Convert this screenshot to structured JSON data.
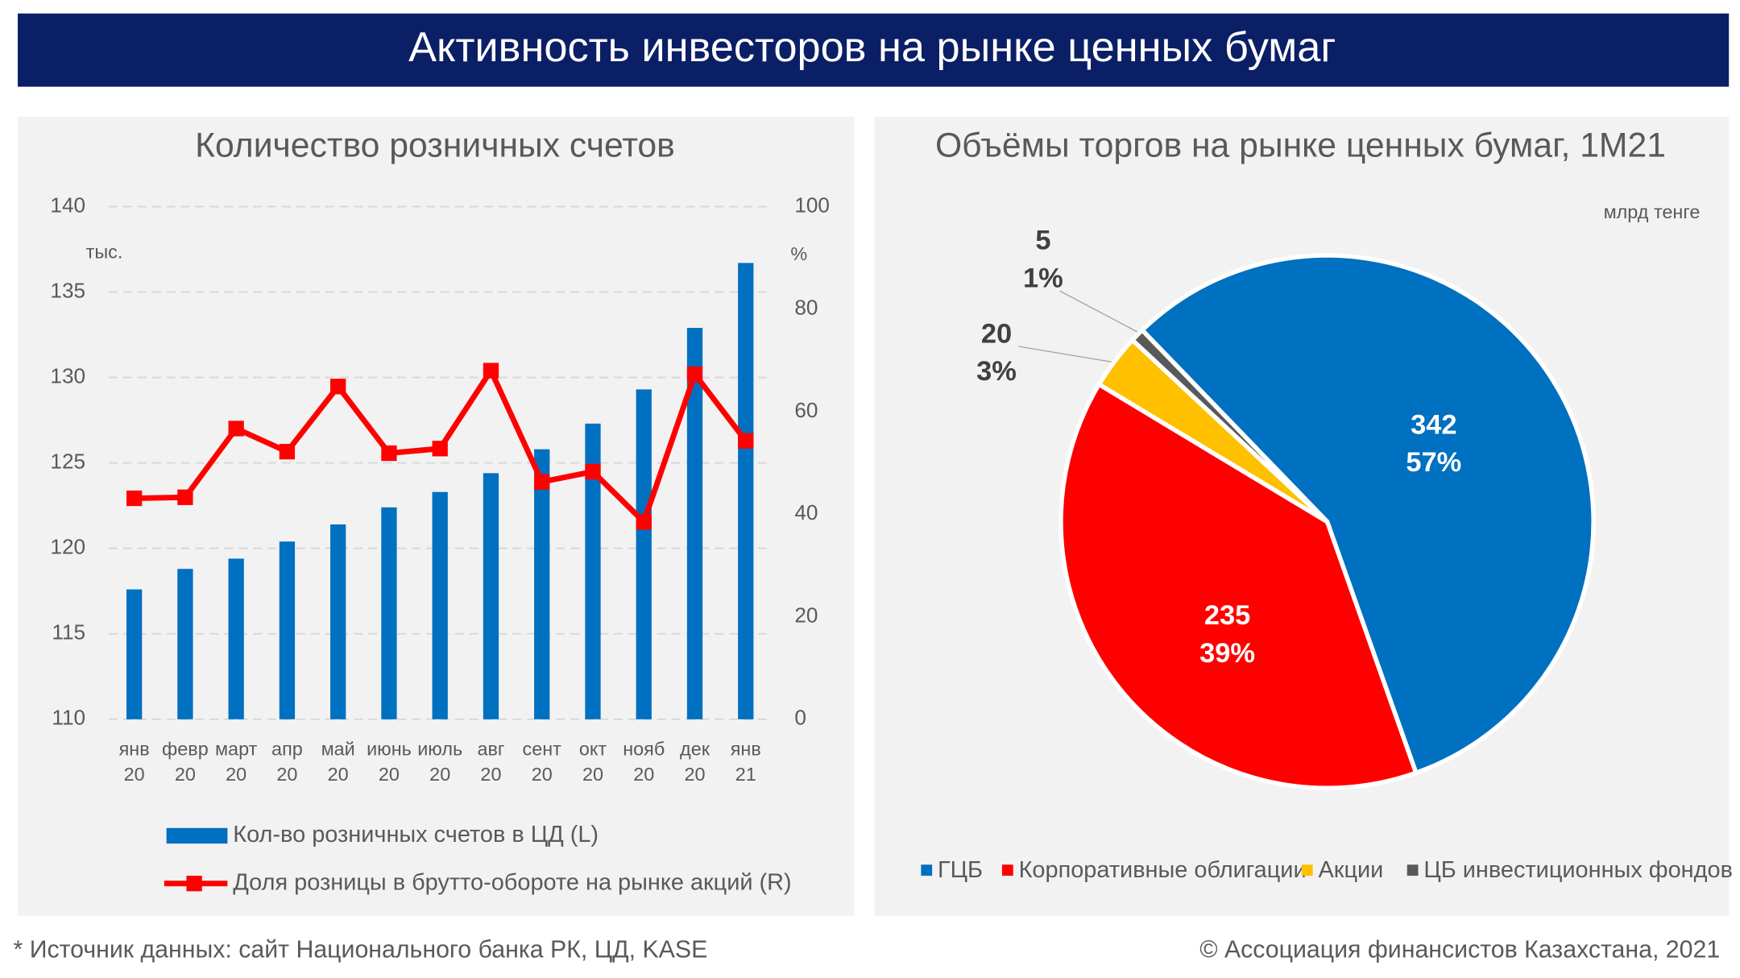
{
  "header": {
    "title": "Активность инвесторов на рынке ценных бумаг"
  },
  "chart_data": [
    {
      "type": "bar",
      "title": "Количество розничных счетов",
      "categories": [
        "янв 20",
        "февр 20",
        "март 20",
        "апр 20",
        "май 20",
        "июнь 20",
        "июль 20",
        "авг 20",
        "сент 20",
        "окт 20",
        "нояб 20",
        "дек 20",
        "янв 21"
      ],
      "y_unit": "тыс.",
      "y2_unit": "%",
      "ylim": [
        110,
        140
      ],
      "yticks": [
        110,
        115,
        120,
        125,
        130,
        135,
        140
      ],
      "y2lim": [
        0,
        100
      ],
      "y2ticks": [
        0,
        20,
        40,
        60,
        80,
        100
      ],
      "grid": true,
      "series": [
        {
          "name": "Кол-во розничных счетов в ЦД (L)",
          "type": "bar",
          "color": "#0070c0",
          "values": [
            117.6,
            118.8,
            119.4,
            120.4,
            121.4,
            122.4,
            123.3,
            124.4,
            125.8,
            127.3,
            129.3,
            132.9,
            136.7
          ]
        },
        {
          "name": "Доля розницы в брутто-обороте на рынке акций (R)",
          "type": "line",
          "axis": "y2",
          "color": "#ff0000",
          "values": [
            43.1,
            43.3,
            56.7,
            52.2,
            64.9,
            51.9,
            52.8,
            68,
            46.3,
            48.3,
            38.5,
            67.3,
            54.3
          ]
        }
      ]
    },
    {
      "type": "pie",
      "title": "Объёмы торгов на рынке ценных бумаг, 1М21",
      "unit": "млрд тенге",
      "categories": [
        "ГЦБ",
        "Корпоративные облигации",
        "Акции",
        "ЦБ инвестиционных фондов"
      ],
      "values": [
        342,
        235,
        20,
        5
      ],
      "percent_labels": [
        "57%",
        "39%",
        "3%",
        "1%"
      ],
      "colors": [
        "#0070c0",
        "#ff0000",
        "#ffc000",
        "#595959"
      ],
      "legend": "bottom"
    }
  ],
  "footer": {
    "source": "* Источник данных: сайт Национального банка РК, ЦД, KASE",
    "copyright": "© Ассоциация финансистов Казахстана, 2021"
  }
}
